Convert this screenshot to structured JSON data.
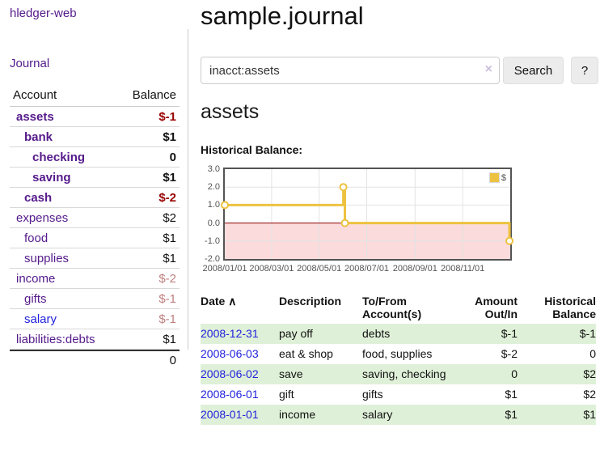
{
  "app": {
    "title": "hledger-web"
  },
  "nav": {
    "journal_label": "Journal"
  },
  "sidebar": {
    "header": {
      "account": "Account",
      "balance": "Balance"
    },
    "accounts": [
      {
        "name": "assets",
        "level": 1,
        "bold": true,
        "link": "visited",
        "balance": "$-1",
        "negative": true
      },
      {
        "name": "bank",
        "level": 2,
        "bold": true,
        "link": "visited",
        "balance": "$1",
        "negative": false
      },
      {
        "name": "checking",
        "level": 3,
        "bold": true,
        "link": "visited",
        "balance": "0",
        "negative": false
      },
      {
        "name": "saving",
        "level": 3,
        "bold": true,
        "link": "visited",
        "balance": "$1",
        "negative": false
      },
      {
        "name": "cash",
        "level": 2,
        "bold": true,
        "link": "visited",
        "balance": "$-2",
        "negative": true
      },
      {
        "name": "expenses",
        "level": 1,
        "bold": false,
        "link": "visited",
        "balance": "$2",
        "negative": false
      },
      {
        "name": "food",
        "level": 2,
        "bold": false,
        "link": "visited",
        "balance": "$1",
        "negative": false
      },
      {
        "name": "supplies",
        "level": 2,
        "bold": false,
        "link": "visited",
        "balance": "$1",
        "negative": false
      },
      {
        "name": "income",
        "level": 1,
        "bold": false,
        "link": "visited",
        "balance": "$-2",
        "negative": true
      },
      {
        "name": "gifts",
        "level": 2,
        "bold": false,
        "link": "visited",
        "balance": "$-1",
        "negative": true
      },
      {
        "name": "salary",
        "level": 2,
        "bold": false,
        "link": "unvisited",
        "balance": "$-1",
        "negative": true
      },
      {
        "name": "liabilities:debts",
        "level": 1,
        "bold": false,
        "link": "visited",
        "balance": "$1",
        "negative": false
      }
    ],
    "total": "0"
  },
  "header": {
    "title": "sample.journal"
  },
  "search": {
    "value": "inacct:assets",
    "clear_icon": "×",
    "button_label": "Search",
    "help_label": "?"
  },
  "register": {
    "account_heading": "assets",
    "chart_title": "Historical Balance:"
  },
  "chart_data": {
    "type": "line",
    "step": true,
    "title": "Historical Balance",
    "series": [
      {
        "name": "$",
        "color": "#edc240",
        "points": [
          [
            "2008-01-01",
            1
          ],
          [
            "2008-06-01",
            2
          ],
          [
            "2008-06-03",
            0
          ],
          [
            "2008-12-31",
            -1
          ]
        ]
      }
    ],
    "xlim": [
      "2008-01-01",
      "2009-01-01"
    ],
    "ylim": [
      -2,
      3
    ],
    "x_ticks": [
      "2008/01/01",
      "2008/03/01",
      "2008/05/01",
      "2008/07/01",
      "2008/09/01",
      "2008/11/01"
    ],
    "y_ticks": [
      "3.0",
      "2.0",
      "1.0",
      "0.0",
      "-1.0",
      "-2.0"
    ],
    "grid": true,
    "negative_region_color": "#fbdbdb",
    "zero_line_color": "#8b0000",
    "legend": {
      "label": "$",
      "position": "top-right"
    }
  },
  "table": {
    "sort_icon": "∧",
    "headers": {
      "date": "Date",
      "description": "Description",
      "accounts": "To/From Account(s)",
      "amount": "Amount Out/In",
      "balance": "Historical Balance"
    },
    "rows": [
      {
        "date": "2008-12-31",
        "description": "pay off",
        "accounts": "debts",
        "amount": "$-1",
        "balance": "$-1"
      },
      {
        "date": "2008-06-03",
        "description": "eat & shop",
        "accounts": "food, supplies",
        "amount": "$-2",
        "balance": "0"
      },
      {
        "date": "2008-06-02",
        "description": "save",
        "accounts": "saving, checking",
        "amount": "0",
        "balance": "$2"
      },
      {
        "date": "2008-06-01",
        "description": "gift",
        "accounts": "gifts",
        "amount": "$1",
        "balance": "$2"
      },
      {
        "date": "2008-01-01",
        "description": "income",
        "accounts": "salary",
        "amount": "$1",
        "balance": "$1"
      }
    ]
  },
  "colors": {
    "link_visited": "#551a8b",
    "link_unvisited": "#2222dd",
    "negative_strong": "#990000",
    "negative_muted": "#c08080",
    "row_stripe": "#dff0d8",
    "series_gold": "#edc240",
    "negative_region": "#fbdbdb",
    "zero_line": "#8b0000",
    "chart_border": "#545454"
  }
}
